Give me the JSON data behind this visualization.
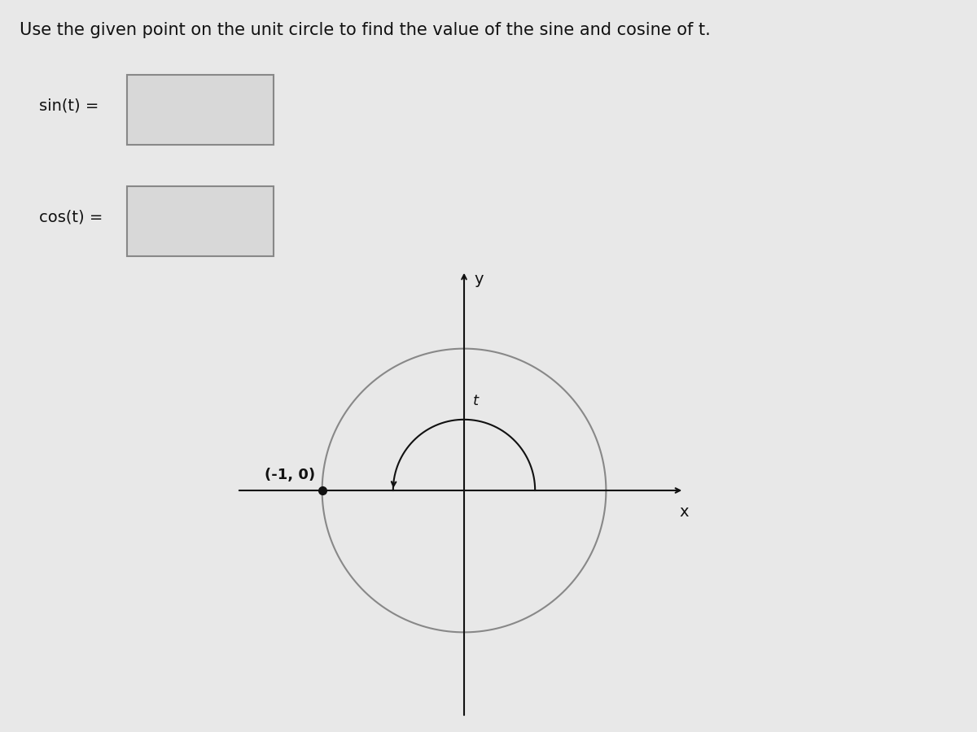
{
  "title": "Use the given point on the unit circle to find the value of the sine and cosine of t.",
  "sin_label": "sin(t) =",
  "cos_label": "cos(t) =",
  "point": [
    -1,
    0
  ],
  "point_label": "(-1, 0)",
  "axis_label_x": "x",
  "axis_label_y": "y",
  "arc_label": "t",
  "bg_color": "#e8e8e8",
  "circle_color": "#888888",
  "axis_color": "#111111",
  "point_color": "#111111",
  "text_color": "#111111",
  "box_bg": "#d8d8d8",
  "box_edge": "#888888",
  "title_fontsize": 15,
  "label_fontsize": 14,
  "axis_range": [
    -1.6,
    1.6
  ]
}
